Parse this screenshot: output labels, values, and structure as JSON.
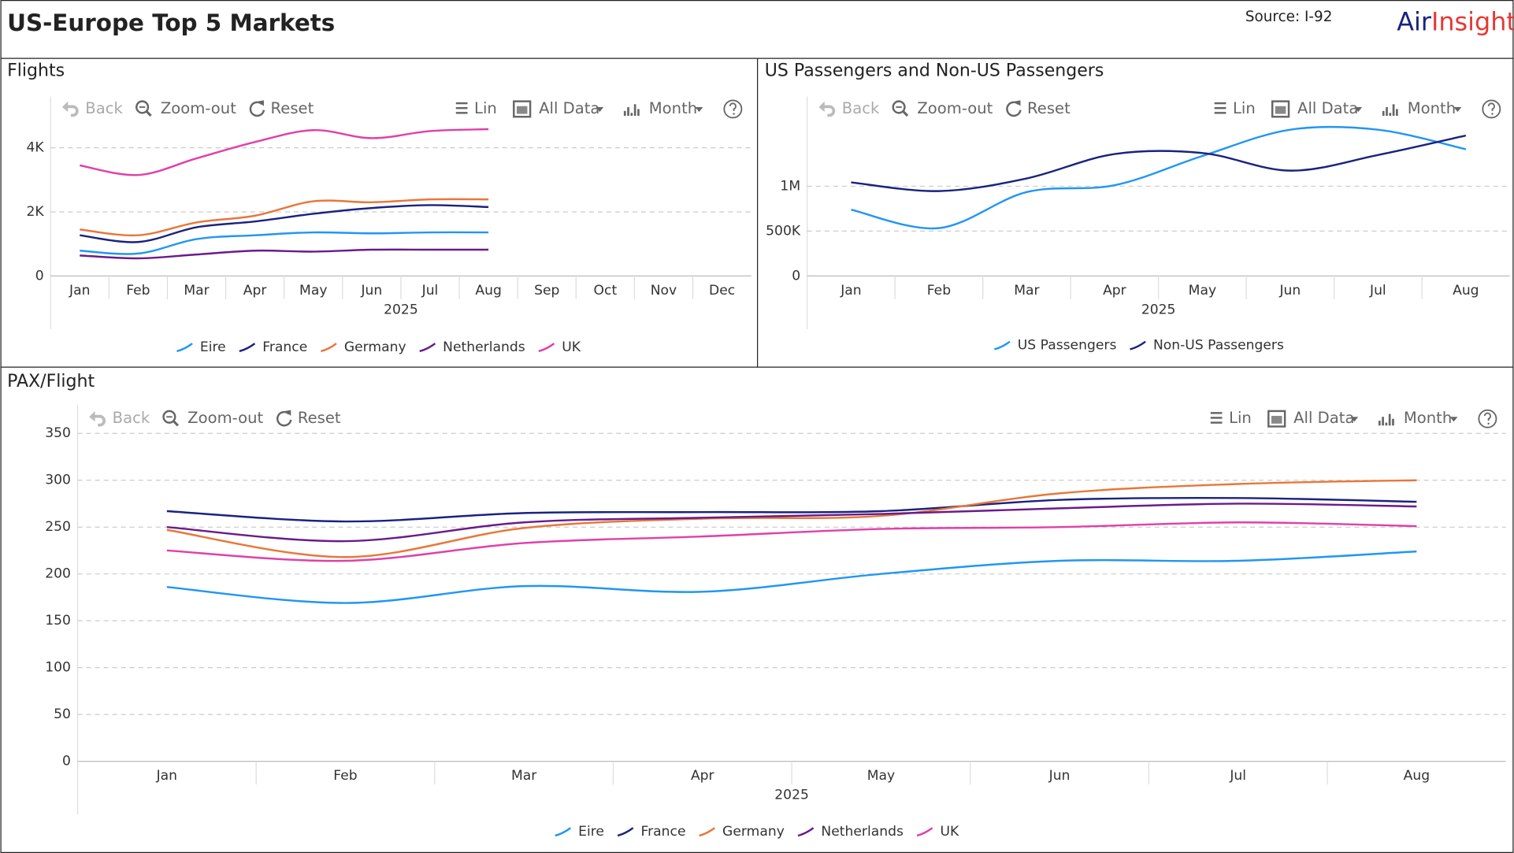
{
  "header": {
    "title": "US-Europe Top 5 Markets",
    "source": "Source: I-92",
    "logo": [
      "Air",
      "Insight"
    ]
  },
  "toolbar": [
    "Back",
    "Zoom-out",
    "Reset",
    "Lin",
    "All Data",
    "Month"
  ],
  "chart_data": [
    {
      "type": "line",
      "title": "Flights",
      "xlabel": "2025",
      "categories": [
        "Jan",
        "Feb",
        "Mar",
        "Apr",
        "May",
        "Jun",
        "Jul",
        "Aug",
        "Sep",
        "Oct",
        "Nov",
        "Dec"
      ],
      "series": [
        {
          "name": "Eire",
          "color": "#2196f3",
          "values": [
            790,
            700,
            1150,
            1270,
            1360,
            1330,
            1360,
            1360,
            null,
            null,
            null,
            null
          ]
        },
        {
          "name": "France",
          "color": "#1a237e",
          "values": [
            1270,
            1060,
            1520,
            1700,
            1940,
            2120,
            2210,
            2150,
            null,
            null,
            null,
            null
          ]
        },
        {
          "name": "Germany",
          "color": "#e8773a",
          "values": [
            1450,
            1270,
            1670,
            1880,
            2330,
            2300,
            2390,
            2390,
            null,
            null,
            null,
            null
          ]
        },
        {
          "name": "Netherlands",
          "color": "#6a1b8a",
          "values": [
            640,
            550,
            670,
            790,
            760,
            820,
            820,
            820,
            null,
            null,
            null,
            null
          ]
        },
        {
          "name": "UK",
          "color": "#e040a8",
          "values": [
            3450,
            3150,
            3670,
            4180,
            4550,
            4300,
            4520,
            4580,
            null,
            null,
            null,
            null
          ]
        }
      ],
      "ylim": [
        0,
        5600
      ],
      "yticks": [
        0,
        {
          "value": 2000,
          "label": "2K"
        },
        {
          "value": 4000,
          "label": "4K"
        }
      ],
      "grid": true,
      "legend": "bottom"
    },
    {
      "type": "line",
      "title": "US Passengers and Non-US Passengers",
      "xlabel": "2025",
      "categories": [
        "Jan",
        "Feb",
        "Mar",
        "Apr",
        "May",
        "Jun",
        "Jul",
        "Aug"
      ],
      "series": [
        {
          "name": "US Passengers",
          "color": "#2196f3",
          "values": [
            739000,
            533000,
            935000,
            1011000,
            1337000,
            1630000,
            1630000,
            1413000
          ]
        },
        {
          "name": "Non-US Passengers",
          "color": "#1a237e",
          "values": [
            1043000,
            946000,
            1087000,
            1359000,
            1370000,
            1174000,
            1348000,
            1565000
          ]
        }
      ],
      "ylim": [
        0,
        2000000
      ],
      "yticks": [
        0,
        {
          "value": 500000,
          "label": "500K"
        },
        {
          "value": 1000000,
          "label": "1M"
        }
      ],
      "grid": true,
      "legend": "bottom"
    },
    {
      "type": "line",
      "title": "PAX/Flight",
      "xlabel": "2025",
      "categories": [
        "Jan",
        "Feb",
        "Mar",
        "Apr",
        "May",
        "Jun",
        "Jul",
        "Aug"
      ],
      "series": [
        {
          "name": "Eire",
          "color": "#2196f3",
          "values": [
            186,
            169,
            187,
            181,
            200,
            214,
            214,
            224
          ]
        },
        {
          "name": "France",
          "color": "#1a237e",
          "values": [
            267,
            256,
            265,
            266,
            267,
            279,
            281,
            277
          ]
        },
        {
          "name": "Germany",
          "color": "#e8773a",
          "values": [
            247,
            218,
            249,
            259,
            262,
            286,
            296,
            300
          ]
        },
        {
          "name": "Netherlands",
          "color": "#6a1b8a",
          "values": [
            250,
            235,
            255,
            260,
            264,
            270,
            275,
            272
          ]
        },
        {
          "name": "UK",
          "color": "#e040a8",
          "values": [
            225,
            214,
            233,
            240,
            248,
            250,
            255,
            251
          ]
        }
      ],
      "ylim": [
        0,
        380
      ],
      "yticks": [
        0,
        50,
        100,
        150,
        200,
        250,
        300,
        350
      ],
      "grid": true,
      "legend": "bottom"
    }
  ]
}
